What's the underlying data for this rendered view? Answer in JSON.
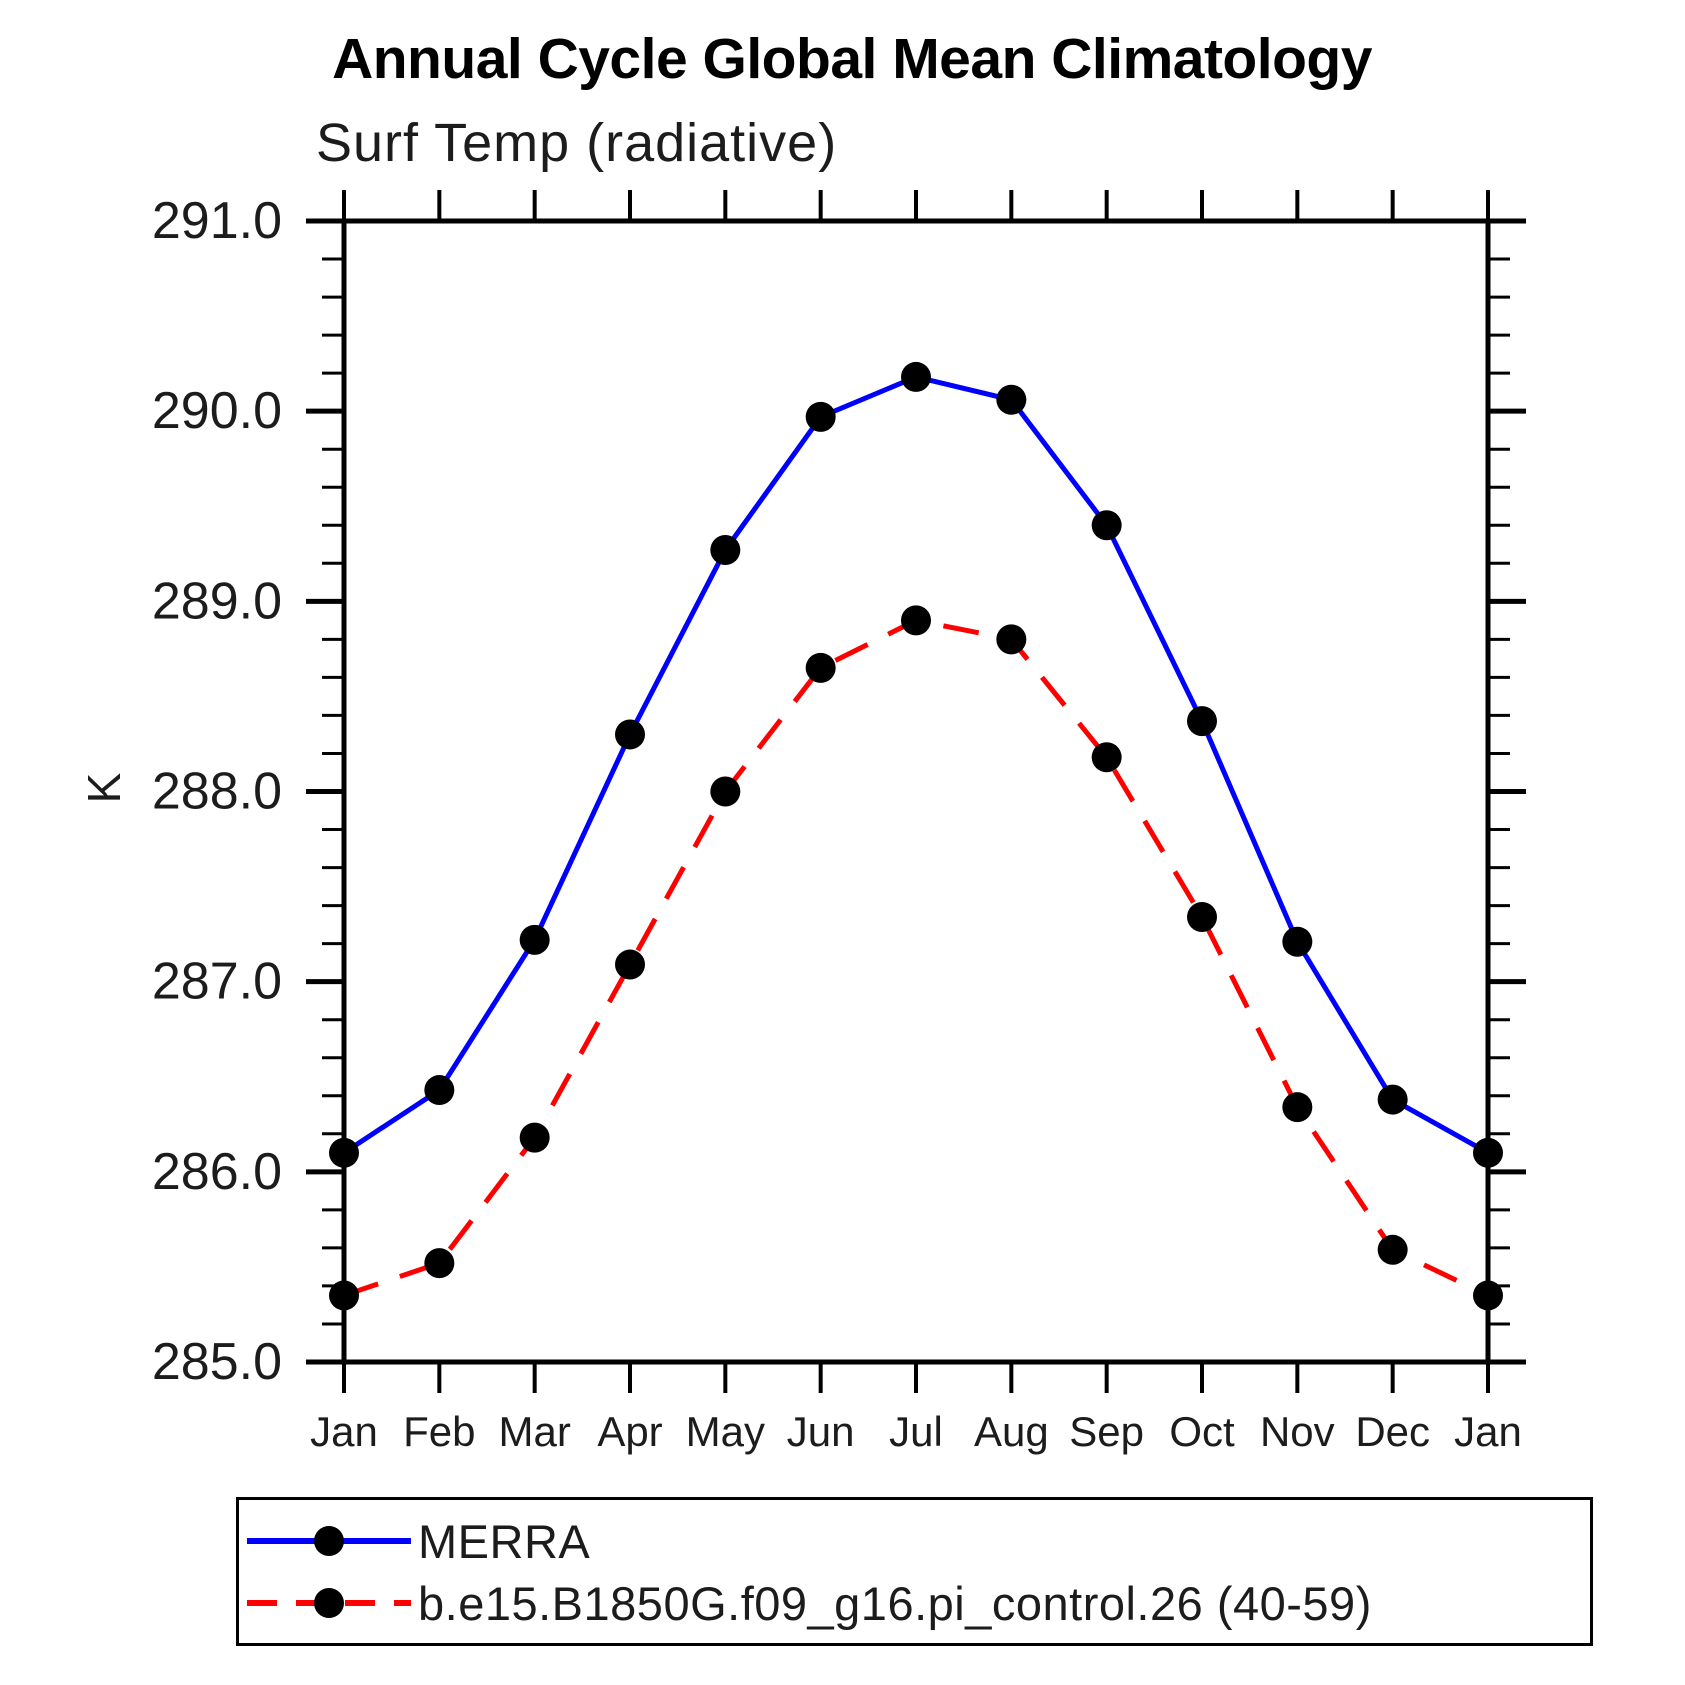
{
  "title": "Annual Cycle Global Mean Climatology",
  "subtitle": "Surf Temp (radiative)",
  "chart_data": {
    "type": "line",
    "categories": [
      "Jan",
      "Feb",
      "Mar",
      "Apr",
      "May",
      "Jun",
      "Jul",
      "Aug",
      "Sep",
      "Oct",
      "Nov",
      "Dec",
      "Jan"
    ],
    "xlabel": "",
    "ylabel": "K",
    "ylim": [
      285.0,
      291.0
    ],
    "ytick_major_step": 1.0,
    "ytick_minor_step": 0.2,
    "ytick_labels": [
      "285.0",
      "286.0",
      "287.0",
      "288.0",
      "289.0",
      "290.0",
      "291.0"
    ],
    "grid": false,
    "legend_position": "bottom",
    "axis_color": "#000000",
    "text_color": "#1c1c1c",
    "marker_color": "#000000",
    "series": [
      {
        "name": "MERRA",
        "color": "#0000ff",
        "line_style": "solid",
        "marker": "circle",
        "values": [
          286.1,
          286.43,
          287.22,
          288.3,
          289.27,
          289.97,
          290.18,
          290.06,
          289.4,
          288.37,
          287.21,
          286.38,
          286.1
        ]
      },
      {
        "name": "b.e15.B1850G.f09_g16.pi_control.26 (40-59)",
        "color": "#ff0000",
        "line_style": "dashed",
        "marker": "circle",
        "values": [
          285.35,
          285.52,
          286.18,
          287.09,
          288.0,
          288.65,
          288.9,
          288.8,
          288.18,
          287.34,
          286.34,
          285.59,
          285.35
        ]
      }
    ]
  }
}
